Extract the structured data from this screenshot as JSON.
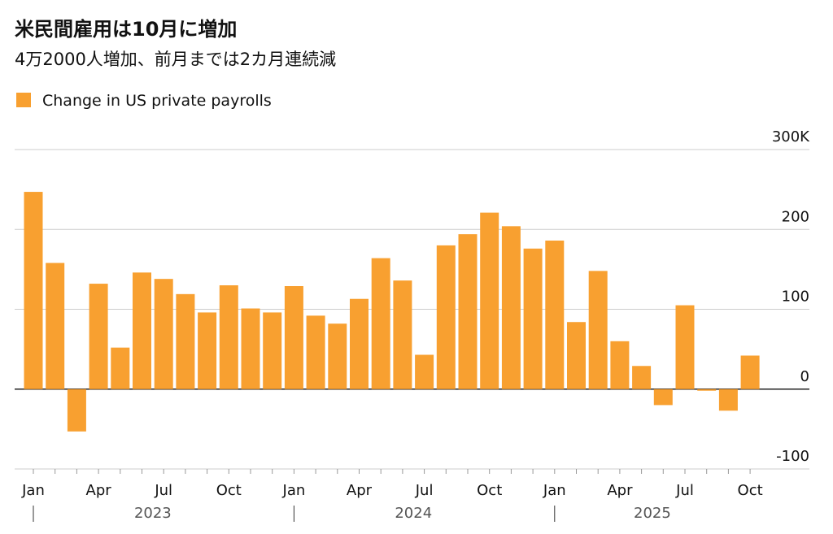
{
  "chart_data": {
    "type": "bar",
    "title": "米民間雇用は10月に増加",
    "subtitle": "4万2000人増加、前月までは2カ月連続減",
    "series": [
      {
        "name": "Change in US private payrolls",
        "color": "#f8a030",
        "values": [
          247,
          158,
          -53,
          132,
          52,
          146,
          138,
          119,
          96,
          130,
          101,
          96,
          129,
          92,
          82,
          113,
          164,
          136,
          43,
          180,
          194,
          221,
          204,
          176,
          186,
          84,
          148,
          60,
          29,
          -20,
          105,
          -2,
          -27,
          42
        ]
      }
    ],
    "categories": [
      "Jan",
      null,
      null,
      "Apr",
      null,
      null,
      "Jul",
      null,
      null,
      "Oct",
      null,
      null,
      "Jan",
      null,
      null,
      "Apr",
      null,
      null,
      "Jul",
      null,
      null,
      "Oct",
      null,
      null,
      "Jan",
      null,
      null,
      "Apr",
      null,
      null,
      "Jul",
      null,
      null,
      "Oct"
    ],
    "year_labels": [
      "2023",
      "2024",
      "2025"
    ],
    "ylim": [
      -100,
      300
    ],
    "yticks": [
      -100,
      0,
      100,
      200,
      {
        "value": 300,
        "label": "300K"
      }
    ],
    "grid": true
  }
}
